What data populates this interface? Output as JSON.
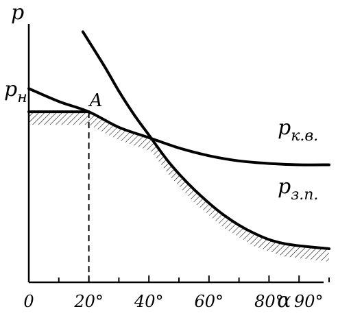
{
  "chart_data": {
    "type": "line",
    "xlabel": "α",
    "ylabel": "p",
    "xlim": [
      0,
      100
    ],
    "ylim": [
      0,
      100
    ],
    "x_ticks": [
      0,
      20,
      40,
      60,
      80,
      90
    ],
    "x_tick_labels": [
      "0",
      "20°",
      "40°",
      "60°",
      "80°",
      "90°"
    ],
    "grid": false,
    "series": [
      {
        "name": "p_к.в.",
        "label_main": "p",
        "label_sub": "к.в.",
        "style": "solid",
        "x": [
          0,
          10,
          20,
          30,
          40,
          50,
          60,
          70,
          80,
          90,
          100
        ],
        "y": [
          75,
          70,
          66,
          60,
          56,
          52,
          49,
          47,
          46,
          45.5,
          45.5
        ]
      },
      {
        "name": "p_з.п.",
        "label_main": "p",
        "label_sub": "з.п.",
        "style": "solid",
        "x": [
          18,
          25,
          30,
          35,
          40,
          47,
          55,
          65,
          75,
          85,
          100
        ],
        "y": [
          97,
          84,
          74,
          65,
          57,
          46,
          36,
          26,
          19,
          15,
          13
        ]
      },
      {
        "name": "p_н",
        "label_main": "p",
        "label_sub": "н",
        "style": "solid",
        "x": [
          0,
          20
        ],
        "y": [
          66,
          66
        ]
      }
    ],
    "hatched_region": {
      "below": "min(p_н, p_к.в., p_з.п.)",
      "x_from": 0,
      "x_to": 100,
      "thickness": 5
    },
    "annotations": [
      {
        "text": "A",
        "x": 20,
        "y": 66
      }
    ],
    "dashed_lines": [
      {
        "from": [
          20,
          66
        ],
        "to": [
          20,
          0
        ]
      }
    ]
  }
}
